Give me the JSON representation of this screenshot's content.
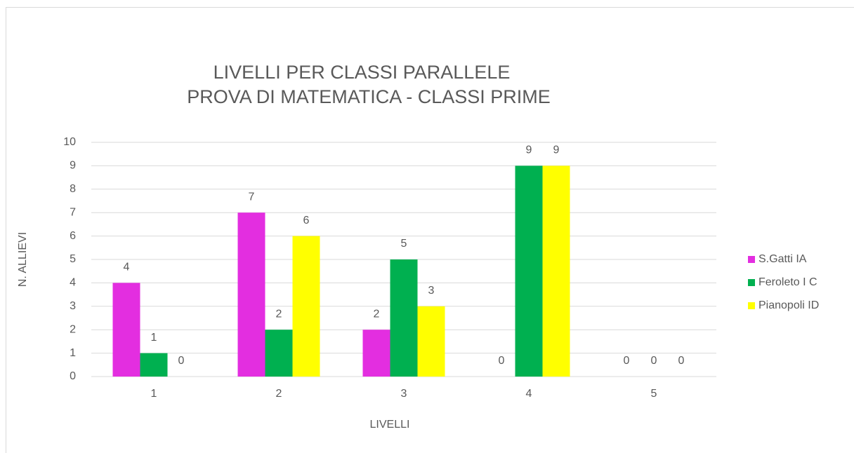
{
  "chart_data": {
    "type": "bar",
    "title": [
      "LIVELLI PER CLASSI PARALLELE",
      "PROVA DI MATEMATICA - CLASSI PRIME"
    ],
    "x_label": "LIVELLI",
    "y_label": "N. ALLIEVI",
    "categories": [
      "1",
      "2",
      "3",
      "4",
      "5"
    ],
    "series": [
      {
        "name": "S.Gatti IA",
        "color": "#e32ee0",
        "values": [
          4,
          7,
          2,
          0,
          0
        ]
      },
      {
        "name": "Feroleto I C",
        "color": "#00b050",
        "values": [
          1,
          2,
          5,
          9,
          0
        ]
      },
      {
        "name": "Pianopoli ID",
        "color": "#ffff00",
        "values": [
          0,
          6,
          3,
          9,
          0
        ]
      }
    ],
    "ylim": [
      0,
      10
    ],
    "yticks": [
      0,
      1,
      2,
      3,
      4,
      5,
      6,
      7,
      8,
      9,
      10
    ],
    "grid": true,
    "legend": "right",
    "data_labels": true
  }
}
